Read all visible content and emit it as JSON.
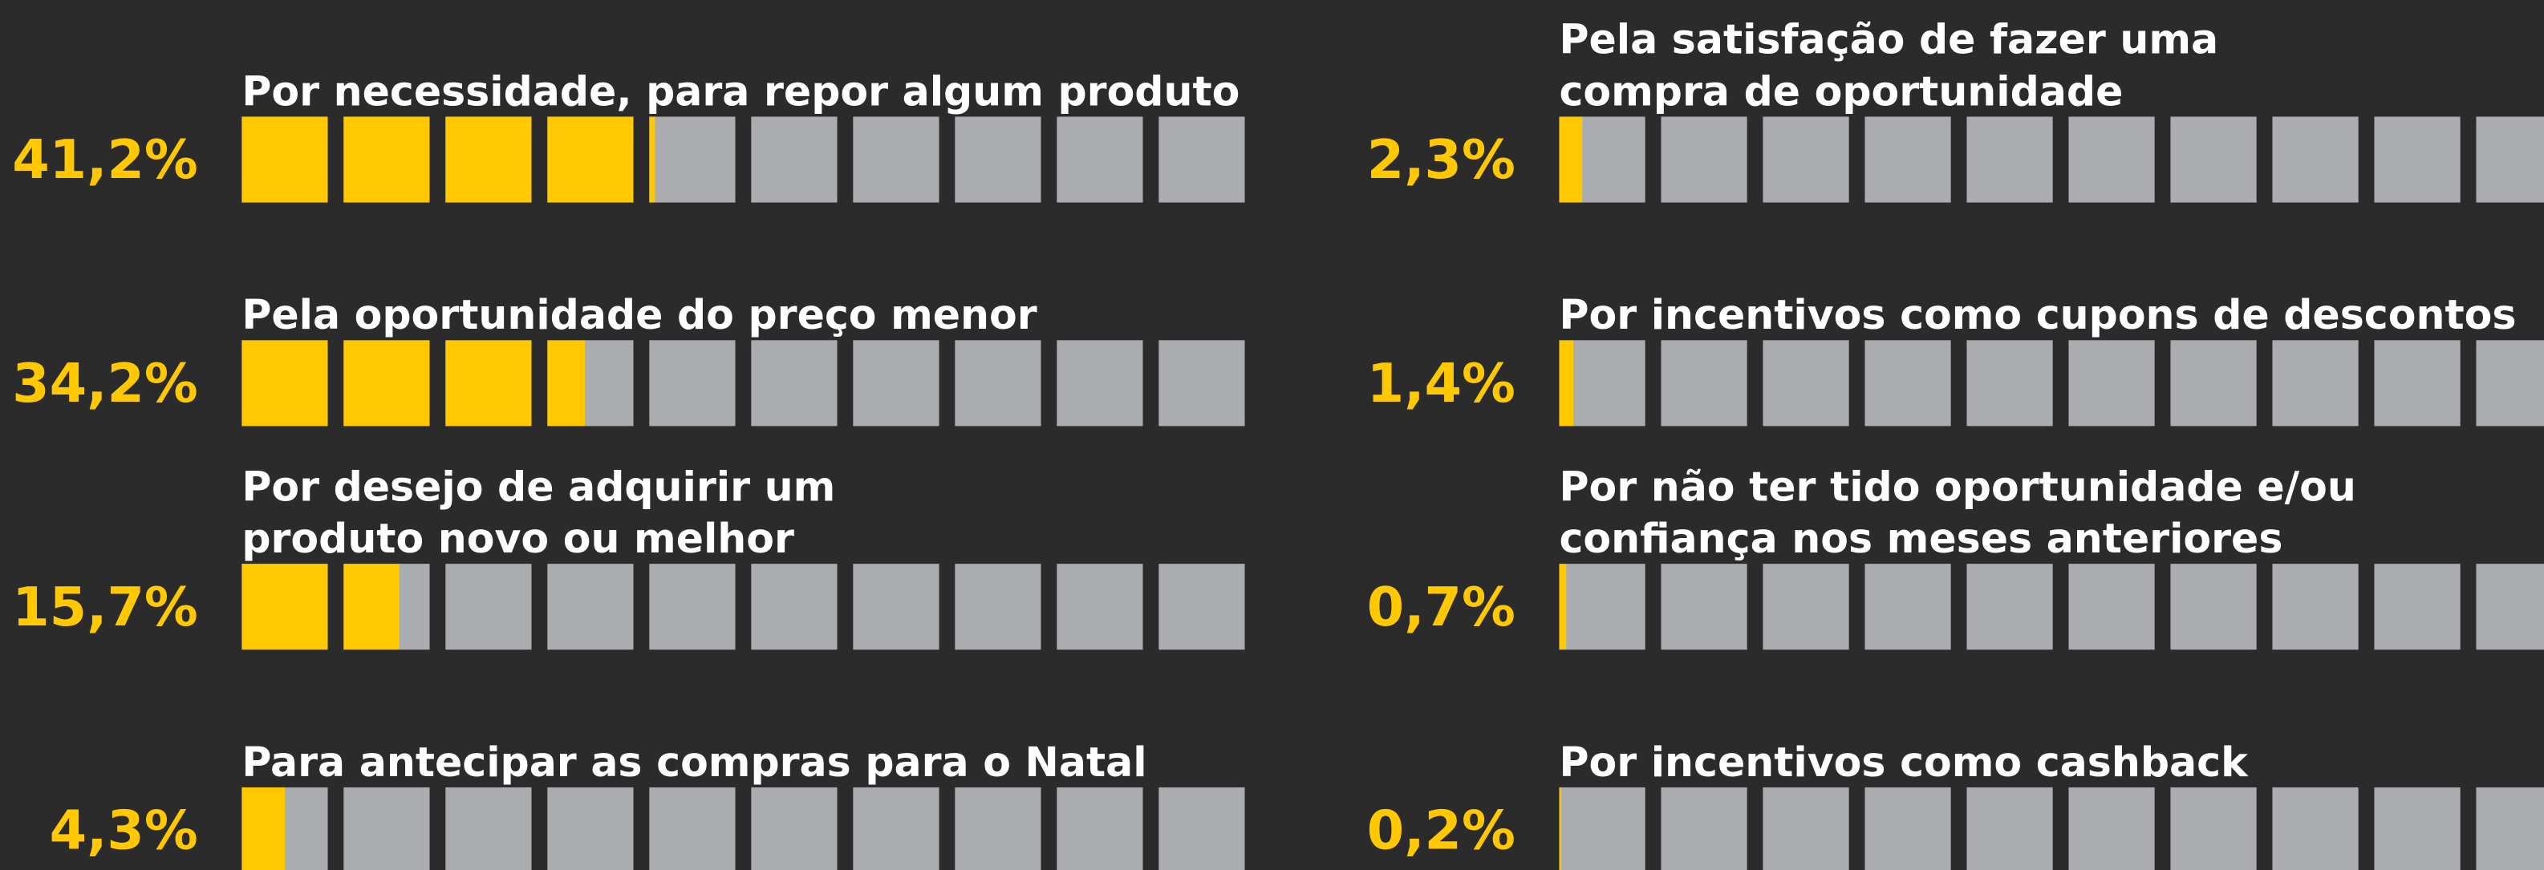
{
  "chart_data": {
    "type": "waffle-bar",
    "categories": [
      [
        "Por necessidade, para repor algum produto"
      ],
      [
        "Pela oportunidade do preço menor"
      ],
      [
        "Por desejo de adquirir um",
        "produto novo ou melhor"
      ],
      [
        "Para antecipar as compras para o Natal"
      ],
      [
        "Pela satisfação de fazer uma",
        "compra de oportunidade"
      ],
      [
        "Por incentivos como cupons de descontos"
      ],
      [
        "Por não ter tido oportunidade e/ou",
        "confiança nos meses anteriores"
      ],
      [
        "Por incentivos como cashback"
      ]
    ],
    "values": [
      41.2,
      34.2,
      15.7,
      4.3,
      2.3,
      1.4,
      0.7,
      0.2
    ],
    "value_labels": [
      "41,2%",
      "34,2%",
      "15,7%",
      "4,3%",
      "2,3%",
      "1,4%",
      "0,7%",
      "0,2%"
    ],
    "xlim": [
      0,
      100
    ],
    "color": "#ffc800",
    "track_color": "#abacb0"
  }
}
